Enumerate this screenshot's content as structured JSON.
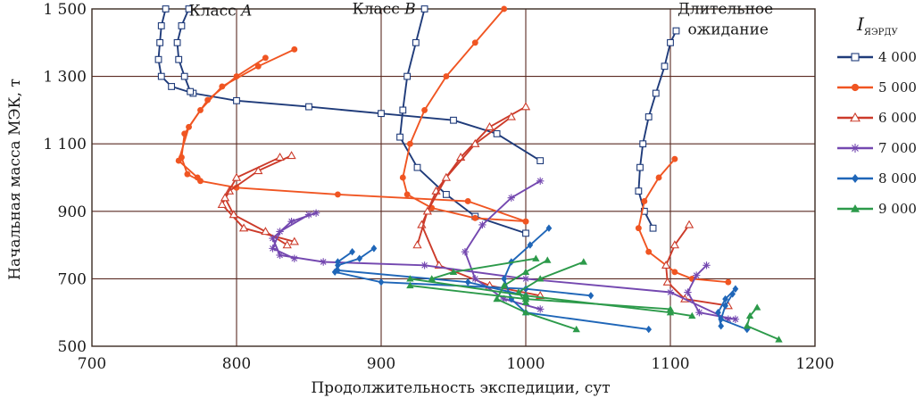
{
  "chart_data": {
    "type": "line",
    "xlabel": "Продолжительность экспедиции, сут",
    "ylabel": "Начальная масса МЭК, т",
    "xlim": [
      700,
      1200
    ],
    "ylim": [
      500,
      1500
    ],
    "xticks": [
      "700",
      "800",
      "900",
      "1000",
      "1100",
      "1200"
    ],
    "yticks": [
      "500",
      "700",
      "900",
      "1 100",
      "1 300",
      "1 500"
    ],
    "grid": true,
    "annotations": [
      {
        "id": "classA",
        "prefix": "Класс ",
        "italic": "A",
        "x": 767,
        "y": 1480
      },
      {
        "id": "classB",
        "prefix": "Класс ",
        "italic": "B",
        "x": 880,
        "y": 1485
      },
      {
        "id": "long1",
        "prefix": "Длительное",
        "italic": "",
        "x": 1105,
        "y": 1485
      },
      {
        "id": "long2",
        "prefix": "ожидание",
        "italic": "",
        "x": 1112,
        "y": 1425
      }
    ],
    "legend": {
      "title_main": "I",
      "title_sub": "ЯЭРДУ",
      "position": "right"
    },
    "series": [
      {
        "name": "4 000",
        "color": "#1f3b7a",
        "marker": "square-open",
        "lines": [
          [
            [
              751,
              1500
            ],
            [
              748,
              1450
            ],
            [
              747,
              1400
            ],
            [
              746,
              1350
            ],
            [
              748,
              1300
            ],
            [
              755,
              1270
            ],
            [
              770,
              1250
            ],
            [
              800,
              1228
            ],
            [
              850,
              1210
            ],
            [
              900,
              1190
            ],
            [
              950,
              1170
            ],
            [
              980,
              1130
            ],
            [
              1010,
              1050
            ]
          ],
          [
            [
              767,
              1500
            ],
            [
              762,
              1450
            ],
            [
              759,
              1400
            ],
            [
              760,
              1350
            ],
            [
              764,
              1300
            ],
            [
              768,
              1255
            ]
          ],
          [
            [
              930,
              1500
            ],
            [
              924,
              1400
            ],
            [
              918,
              1300
            ],
            [
              915,
              1200
            ],
            [
              913,
              1120
            ],
            [
              925,
              1030
            ],
            [
              945,
              950
            ],
            [
              965,
              885
            ],
            [
              1000,
              835
            ]
          ],
          [
            [
              1104,
              1435
            ],
            [
              1100,
              1400
            ],
            [
              1096,
              1330
            ],
            [
              1090,
              1250
            ],
            [
              1085,
              1180
            ],
            [
              1081,
              1100
            ],
            [
              1079,
              1030
            ],
            [
              1078,
              960
            ],
            [
              1082,
              900
            ],
            [
              1088,
              850
            ]
          ]
        ]
      },
      {
        "name": "5 000",
        "color": "#f05522",
        "marker": "circle",
        "lines": [
          [
            [
              840,
              1380
            ],
            [
              815,
              1330
            ],
            [
              790,
              1270
            ],
            [
              775,
              1200
            ],
            [
              764,
              1130
            ],
            [
              762,
              1060
            ],
            [
              766,
              1010
            ],
            [
              775,
              990
            ],
            [
              800,
              970
            ],
            [
              870,
              950
            ],
            [
              960,
              930
            ],
            [
              1000,
              870
            ]
          ],
          [
            [
              820,
              1355
            ],
            [
              800,
              1300
            ],
            [
              780,
              1230
            ],
            [
              767,
              1150
            ],
            [
              760,
              1050
            ],
            [
              773,
              1000
            ]
          ],
          [
            [
              985,
              1500
            ],
            [
              965,
              1400
            ],
            [
              945,
              1300
            ],
            [
              930,
              1200
            ],
            [
              920,
              1100
            ],
            [
              915,
              1000
            ],
            [
              918,
              950
            ],
            [
              935,
              910
            ],
            [
              965,
              880
            ],
            [
              1000,
              870
            ]
          ],
          [
            [
              1103,
              1055
            ],
            [
              1092,
              1000
            ],
            [
              1082,
              930
            ],
            [
              1078,
              850
            ],
            [
              1085,
              780
            ],
            [
              1103,
              720
            ],
            [
              1115,
              700
            ],
            [
              1140,
              690
            ]
          ]
        ]
      },
      {
        "name": "6 000",
        "color": "#cc3b2a",
        "marker": "triangle-open",
        "lines": [
          [
            [
              838,
              1065
            ],
            [
              815,
              1020
            ],
            [
              795,
              960
            ],
            [
              790,
              920
            ],
            [
              805,
              850
            ],
            [
              840,
              810
            ]
          ],
          [
            [
              830,
              1060
            ],
            [
              800,
              1000
            ],
            [
              792,
              940
            ],
            [
              798,
              890
            ],
            [
              820,
              840
            ],
            [
              835,
              800
            ]
          ],
          [
            [
              1000,
              1210
            ],
            [
              975,
              1150
            ],
            [
              955,
              1060
            ],
            [
              938,
              960
            ],
            [
              928,
              860
            ],
            [
              940,
              740
            ],
            [
              975,
              680
            ],
            [
              1010,
              650
            ]
          ],
          [
            [
              990,
              1180
            ],
            [
              965,
              1100
            ],
            [
              945,
              1000
            ],
            [
              932,
              900
            ],
            [
              925,
              800
            ]
          ],
          [
            [
              1113,
              860
            ],
            [
              1103,
              800
            ],
            [
              1097,
              740
            ],
            [
              1098,
              690
            ],
            [
              1110,
              640
            ],
            [
              1140,
              620
            ]
          ]
        ]
      },
      {
        "name": "7 000",
        "color": "#7448b0",
        "marker": "star",
        "lines": [
          [
            [
              855,
              895
            ],
            [
              838,
              870
            ],
            [
              825,
              820
            ],
            [
              830,
              770
            ],
            [
              860,
              750
            ],
            [
              930,
              740
            ],
            [
              1000,
              700
            ],
            [
              1100,
              660
            ],
            [
              1140,
              580
            ]
          ],
          [
            [
              850,
              890
            ],
            [
              830,
              840
            ],
            [
              825,
              790
            ],
            [
              840,
              760
            ]
          ],
          [
            [
              1010,
              990
            ],
            [
              990,
              940
            ],
            [
              970,
              860
            ],
            [
              958,
              780
            ],
            [
              965,
              700
            ],
            [
              985,
              640
            ],
            [
              1010,
              610
            ]
          ],
          [
            [
              1125,
              740
            ],
            [
              1118,
              710
            ],
            [
              1112,
              660
            ],
            [
              1120,
              600
            ],
            [
              1145,
              580
            ]
          ]
        ]
      },
      {
        "name": "8 000",
        "color": "#1f66b8",
        "marker": "diamond",
        "lines": [
          [
            [
              895,
              790
            ],
            [
              885,
              760
            ],
            [
              870,
              740
            ],
            [
              868,
              720
            ],
            [
              900,
              690
            ],
            [
              1000,
              670
            ],
            [
              1045,
              650
            ]
          ],
          [
            [
              880,
              780
            ],
            [
              870,
              750
            ]
          ],
          [
            [
              1016,
              850
            ],
            [
              1003,
              800
            ],
            [
              990,
              750
            ],
            [
              985,
              700
            ],
            [
              990,
              640
            ],
            [
              1000,
              600
            ],
            [
              1085,
              550
            ]
          ],
          [
            [
              1145,
              670
            ],
            [
              1138,
              640
            ],
            [
              1133,
              600
            ],
            [
              1135,
              560
            ]
          ],
          [
            [
              1143,
              655
            ],
            [
              1138,
              620
            ],
            [
              1135,
              580
            ],
            [
              1153,
              550
            ]
          ],
          [
            [
              870,
              725
            ],
            [
              960,
              690
            ],
            [
              1000,
              650
            ]
          ]
        ]
      },
      {
        "name": "9 000",
        "color": "#2c9a4a",
        "marker": "triangle",
        "lines": [
          [
            [
              1015,
              755
            ],
            [
              1000,
              720
            ],
            [
              985,
              680
            ],
            [
              980,
              640
            ],
            [
              1000,
              600
            ],
            [
              1035,
              550
            ]
          ],
          [
            [
              1040,
              750
            ],
            [
              1010,
              700
            ],
            [
              995,
              660
            ],
            [
              1000,
              630
            ]
          ],
          [
            [
              920,
              700
            ],
            [
              1000,
              650
            ],
            [
              1100,
              600
            ],
            [
              1115,
              590
            ]
          ],
          [
            [
              920,
              680
            ],
            [
              1000,
              640
            ],
            [
              1100,
              610
            ]
          ],
          [
            [
              1160,
              615
            ],
            [
              1155,
              590
            ],
            [
              1153,
              560
            ],
            [
              1175,
              520
            ]
          ],
          [
            [
              1007,
              760
            ],
            [
              950,
              720
            ],
            [
              935,
              700
            ]
          ]
        ]
      }
    ]
  }
}
